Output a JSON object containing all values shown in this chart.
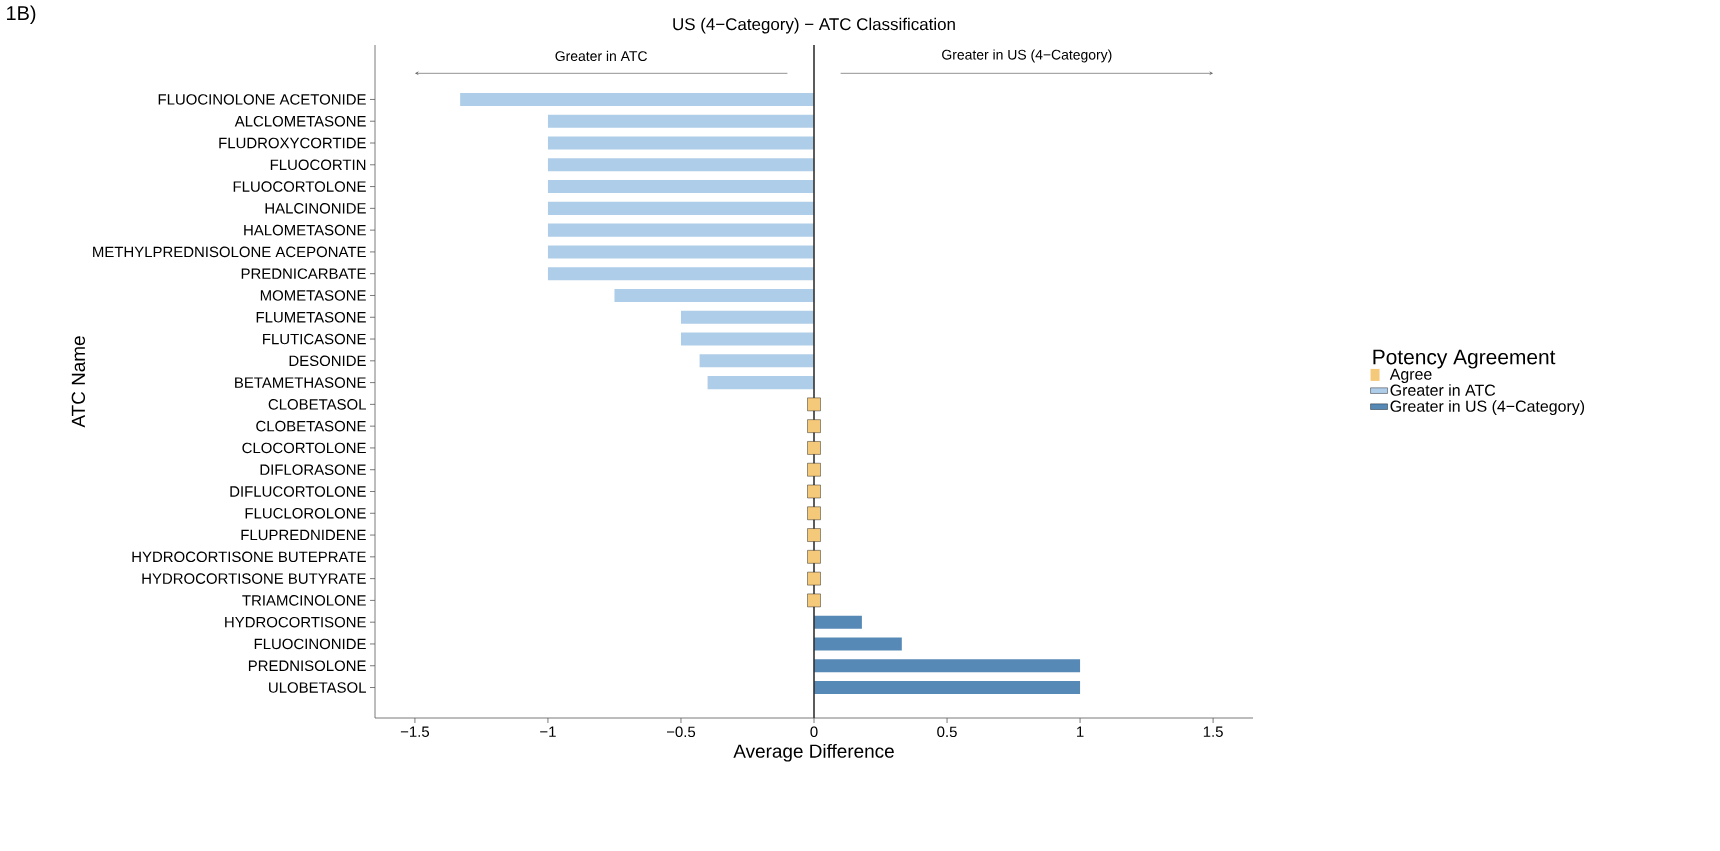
{
  "chart_data": {
    "type": "bar",
    "orientation": "horizontal",
    "title": "US (4−Category) − ATC Classification",
    "xlabel": "Average Difference",
    "ylabel": "ATC Name",
    "legend_title": "Potency Agreement",
    "categories": [
      "FLUOCINOLONE ACETONIDE",
      "ALCLOMETASONE",
      "FLUDROXYCORTIDE",
      "FLUOCORTIN",
      "FLUOCORTOLONE",
      "HALCINONIDE",
      "HALOMETASONE",
      "METHYLPREDNISOLONE ACEPONATE",
      "PREDNICARBATE",
      "MOMETASONE",
      "FLUMETASONE",
      "FLUTICASONE",
      "DESONIDE",
      "BETAMETHASONE",
      "CLOBETASOL",
      "CLOBETASONE",
      "CLOCORTOLONE",
      "DIFLORASONE",
      "DIFLUCORTOLONE",
      "FLUCLOROLONE",
      "FLUPREDNIDENE",
      "HYDROCORTISONE BUTEPRATE",
      "HYDROCORTISONE BUTYRATE",
      "TRIAMCINOLONE",
      "HYDROCORTISONE",
      "FLUOCINONIDE",
      "PREDNISOLONE",
      "ULOBETASOL"
    ],
    "series": [
      {
        "name": "Agree",
        "type": "scatter",
        "marker": "square",
        "color": "#f5c97a",
        "values": [
          null,
          null,
          null,
          null,
          null,
          null,
          null,
          null,
          null,
          null,
          null,
          null,
          null,
          null,
          0,
          0,
          0,
          0,
          0,
          0,
          0,
          0,
          0,
          0,
          null,
          null,
          null,
          null
        ]
      },
      {
        "name": "Greater in ATC",
        "color": "#aecde8",
        "values": [
          -1.33,
          -1,
          -1,
          -1,
          -1,
          -1,
          -1,
          -1,
          -1,
          -0.75,
          -0.5,
          -0.5,
          -0.43,
          -0.4,
          null,
          null,
          null,
          null,
          null,
          null,
          null,
          null,
          null,
          null,
          null,
          null,
          null,
          null
        ]
      },
      {
        "name": "Greater in US (4−Category)",
        "color": "#5689b5",
        "values": [
          null,
          null,
          null,
          null,
          null,
          null,
          null,
          null,
          null,
          null,
          null,
          null,
          null,
          null,
          null,
          null,
          null,
          null,
          null,
          null,
          null,
          null,
          null,
          null,
          0.18,
          0.33,
          1,
          1
        ]
      }
    ],
    "xlim": [
      -1.65,
      1.65
    ],
    "xticks": [
      {
        "value": -1.5,
        "label": "−1.5"
      },
      {
        "value": -1,
        "label": "−1"
      },
      {
        "value": -0.5,
        "label": "−0.5"
      },
      0,
      0.5,
      1,
      1.5
    ],
    "ref_lines": [
      {
        "axis": "x",
        "value": 0,
        "color": "#333333"
      }
    ],
    "annotations": [
      "1B)",
      "Greater in ATC",
      "Greater in US (4−Category)"
    ],
    "legend": "right"
  }
}
